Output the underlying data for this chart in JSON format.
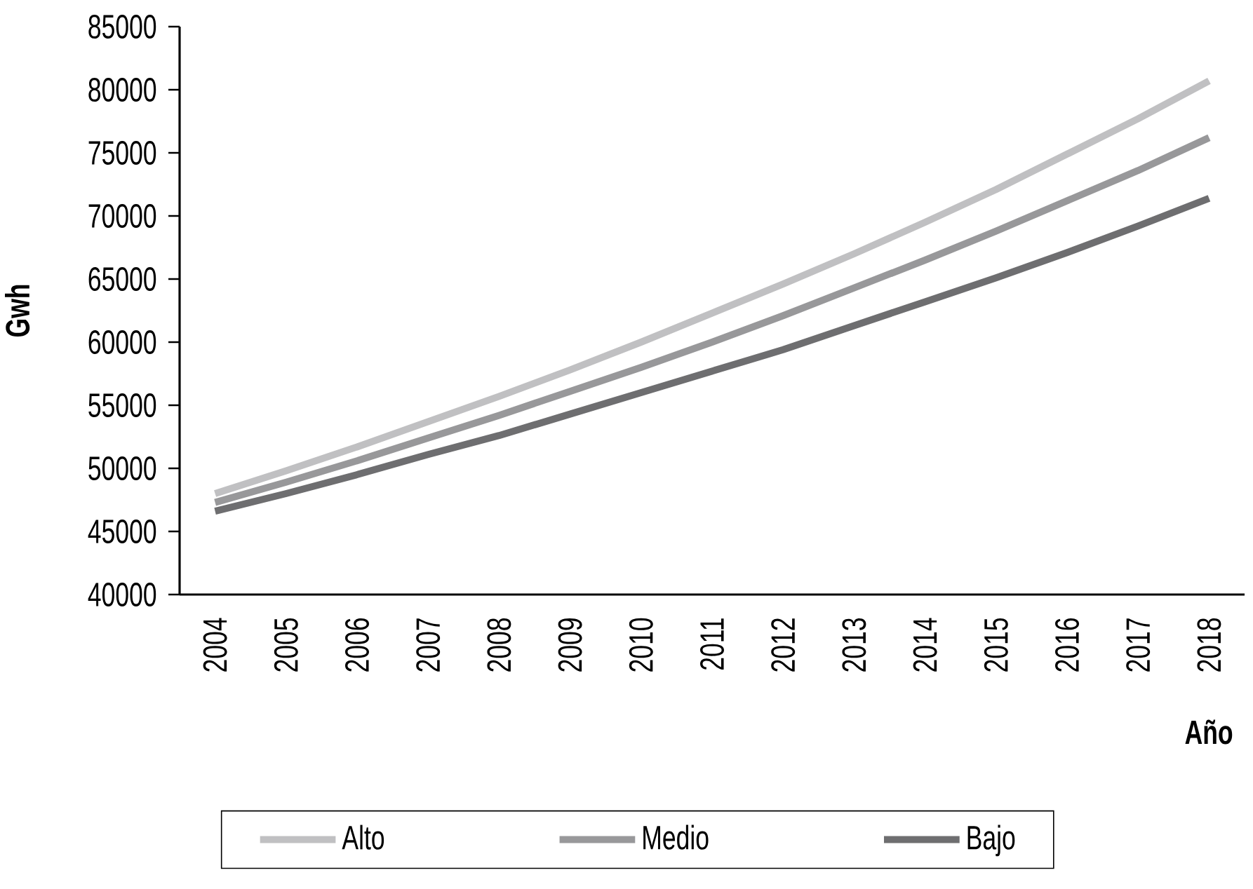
{
  "chart_data": {
    "type": "line",
    "xlabel": "Año",
    "ylabel": "Gwh",
    "categories": [
      "2004",
      "2005",
      "2006",
      "2007",
      "2008",
      "2009",
      "2010",
      "2011",
      "2012",
      "2013",
      "2014",
      "2015",
      "2016",
      "2017",
      "2018"
    ],
    "series": [
      {
        "name": "Alto",
        "color": "#c0c0c2",
        "values": [
          48000,
          49800,
          51700,
          53700,
          55700,
          57800,
          60000,
          62300,
          64600,
          67000,
          69500,
          72100,
          74900,
          77700,
          80700
        ]
      },
      {
        "name": "Medio",
        "color": "#98989a",
        "values": [
          47300,
          48900,
          50600,
          52400,
          54200,
          56100,
          58000,
          60000,
          62100,
          64300,
          66500,
          68800,
          71200,
          73600,
          76200
        ]
      },
      {
        "name": "Bajo",
        "color": "#6e6e70",
        "values": [
          46600,
          48000,
          49500,
          51100,
          52600,
          54300,
          56000,
          57700,
          59400,
          61300,
          63200,
          65100,
          67100,
          69200,
          71400
        ]
      }
    ],
    "ylim": [
      40000,
      85000
    ],
    "yticks": [
      40000,
      45000,
      50000,
      55000,
      60000,
      65000,
      70000,
      75000,
      80000,
      85000
    ],
    "legend": "bottom",
    "marker": "none",
    "line_style": "solid"
  }
}
